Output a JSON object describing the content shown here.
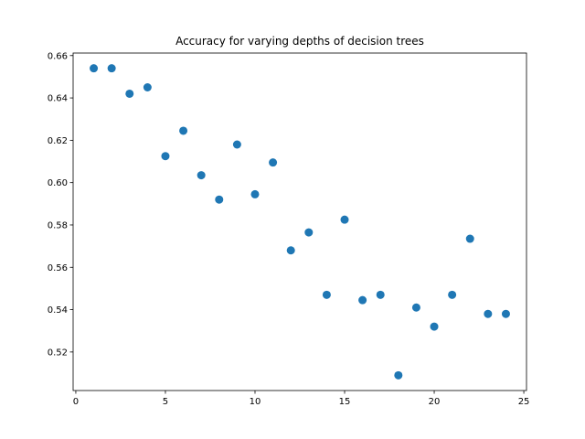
{
  "chart_data": {
    "type": "scatter",
    "title": "Accuracy for varying depths of decision trees",
    "xlabel": "",
    "ylabel": "",
    "x": [
      1,
      2,
      3,
      4,
      5,
      6,
      7,
      8,
      9,
      10,
      11,
      12,
      13,
      14,
      15,
      16,
      17,
      18,
      19,
      20,
      21,
      22,
      23,
      24
    ],
    "y": [
      0.654,
      0.654,
      0.642,
      0.645,
      0.6125,
      0.6245,
      0.6035,
      0.592,
      0.618,
      0.5945,
      0.6095,
      0.568,
      0.5765,
      0.547,
      0.5825,
      0.5445,
      0.547,
      0.509,
      0.541,
      0.532,
      0.547,
      0.5735,
      0.538,
      0.538
    ],
    "xlim": [
      -0.15,
      25.15
    ],
    "ylim": [
      0.5018,
      0.6612
    ],
    "xticks": [
      0,
      5,
      10,
      15,
      20,
      25
    ],
    "yticks": [
      0.52,
      0.54,
      0.56,
      0.58,
      0.6,
      0.62,
      0.64,
      0.66
    ],
    "xtick_labels": [
      "0",
      "5",
      "10",
      "15",
      "20",
      "25"
    ],
    "ytick_labels": [
      "0.52",
      "0.54",
      "0.56",
      "0.58",
      "0.60",
      "0.62",
      "0.64",
      "0.66"
    ],
    "marker_color": "#1f77b4",
    "grid": false,
    "legend": "none"
  }
}
